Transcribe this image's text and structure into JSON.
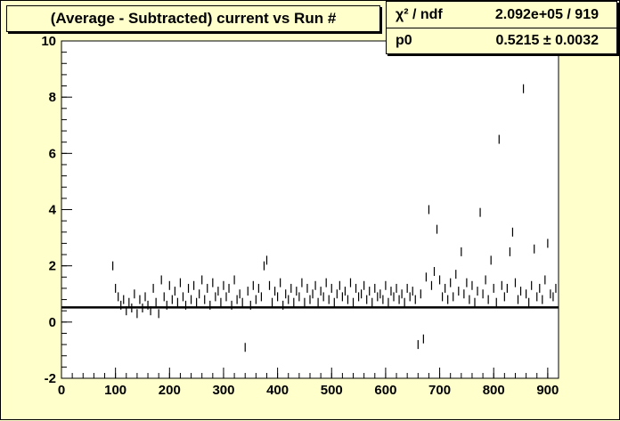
{
  "title": "(Average - Subtracted) current vs Run #",
  "stats": {
    "rows": [
      {
        "name": "χ² / ndf",
        "value": "2.092e+05 / 919"
      },
      {
        "name": "p0",
        "value": "0.5215 ± 0.0032"
      }
    ]
  },
  "chart_data": {
    "type": "scatter",
    "title": "(Average - Subtracted) current vs Run #",
    "xlabel": "",
    "ylabel": "",
    "xlim": [
      0,
      920
    ],
    "ylim": [
      -2,
      10
    ],
    "xticks": [
      0,
      100,
      200,
      300,
      400,
      500,
      600,
      700,
      800,
      900
    ],
    "yticks": [
      -2,
      0,
      2,
      4,
      6,
      8,
      10
    ],
    "grid": false,
    "fit": {
      "type": "constant",
      "p0": 0.5215,
      "p0_error": 0.0032
    },
    "colors": {
      "background": "#ffffcc",
      "frame": "#ffffff",
      "marker": "#000000"
    },
    "points": [
      [
        95,
        2.0
      ],
      [
        100,
        1.2
      ],
      [
        105,
        0.9
      ],
      [
        110,
        0.6
      ],
      [
        115,
        0.8
      ],
      [
        120,
        0.4
      ],
      [
        125,
        0.7
      ],
      [
        130,
        0.5
      ],
      [
        135,
        1.0
      ],
      [
        140,
        0.3
      ],
      [
        145,
        0.8
      ],
      [
        150,
        0.5
      ],
      [
        155,
        0.9
      ],
      [
        160,
        0.6
      ],
      [
        165,
        0.4
      ],
      [
        170,
        1.2
      ],
      [
        175,
        0.7
      ],
      [
        180,
        0.3
      ],
      [
        185,
        1.5
      ],
      [
        190,
        0.9
      ],
      [
        195,
        0.6
      ],
      [
        200,
        1.3
      ],
      [
        205,
        0.8
      ],
      [
        210,
        1.1
      ],
      [
        215,
        0.7
      ],
      [
        220,
        1.4
      ],
      [
        225,
        0.9
      ],
      [
        230,
        0.6
      ],
      [
        235,
        1.2
      ],
      [
        240,
        0.8
      ],
      [
        245,
        1.3
      ],
      [
        250,
        0.7
      ],
      [
        255,
        1.0
      ],
      [
        260,
        1.5
      ],
      [
        265,
        0.8
      ],
      [
        270,
        1.2
      ],
      [
        275,
        0.6
      ],
      [
        280,
        1.4
      ],
      [
        285,
        0.9
      ],
      [
        290,
        1.1
      ],
      [
        295,
        0.7
      ],
      [
        300,
        1.3
      ],
      [
        305,
        0.9
      ],
      [
        310,
        1.2
      ],
      [
        315,
        0.6
      ],
      [
        320,
        1.5
      ],
      [
        325,
        0.8
      ],
      [
        330,
        1.0
      ],
      [
        335,
        0.7
      ],
      [
        340,
        -0.9
      ],
      [
        345,
        1.1
      ],
      [
        350,
        0.6
      ],
      [
        355,
        1.3
      ],
      [
        360,
        0.8
      ],
      [
        365,
        1.2
      ],
      [
        370,
        0.9
      ],
      [
        375,
        2.0
      ],
      [
        380,
        2.2
      ],
      [
        385,
        1.3
      ],
      [
        390,
        0.7
      ],
      [
        395,
        1.1
      ],
      [
        400,
        0.9
      ],
      [
        405,
        1.4
      ],
      [
        410,
        0.6
      ],
      [
        415,
        1.0
      ],
      [
        420,
        0.8
      ],
      [
        425,
        1.2
      ],
      [
        430,
        0.7
      ],
      [
        435,
        1.1
      ],
      [
        440,
        0.9
      ],
      [
        445,
        1.4
      ],
      [
        450,
        0.7
      ],
      [
        455,
        1.2
      ],
      [
        460,
        0.8
      ],
      [
        465,
        1.0
      ],
      [
        470,
        1.3
      ],
      [
        475,
        0.7
      ],
      [
        480,
        1.1
      ],
      [
        485,
        0.9
      ],
      [
        490,
        1.4
      ],
      [
        495,
        0.8
      ],
      [
        500,
        1.2
      ],
      [
        505,
        0.7
      ],
      [
        510,
        1.0
      ],
      [
        515,
        1.3
      ],
      [
        520,
        0.9
      ],
      [
        525,
        1.1
      ],
      [
        530,
        0.8
      ],
      [
        535,
        1.4
      ],
      [
        540,
        0.7
      ],
      [
        545,
        1.2
      ],
      [
        550,
        0.9
      ],
      [
        555,
        1.0
      ],
      [
        560,
        1.3
      ],
      [
        565,
        0.8
      ],
      [
        570,
        1.1
      ],
      [
        575,
        0.7
      ],
      [
        580,
        1.2
      ],
      [
        585,
        0.9
      ],
      [
        590,
        1.0
      ],
      [
        595,
        0.8
      ],
      [
        600,
        1.3
      ],
      [
        605,
        0.7
      ],
      [
        610,
        1.1
      ],
      [
        615,
        0.9
      ],
      [
        620,
        1.2
      ],
      [
        625,
        0.8
      ],
      [
        630,
        1.0
      ],
      [
        635,
        0.7
      ],
      [
        640,
        1.2
      ],
      [
        645,
        0.9
      ],
      [
        650,
        1.1
      ],
      [
        655,
        0.8
      ],
      [
        660,
        -0.8
      ],
      [
        665,
        1.0
      ],
      [
        670,
        -0.6
      ],
      [
        675,
        1.6
      ],
      [
        680,
        4.0
      ],
      [
        685,
        1.3
      ],
      [
        690,
        1.8
      ],
      [
        695,
        3.3
      ],
      [
        700,
        1.5
      ],
      [
        705,
        0.9
      ],
      [
        710,
        1.2
      ],
      [
        715,
        0.8
      ],
      [
        720,
        1.4
      ],
      [
        725,
        0.9
      ],
      [
        730,
        1.7
      ],
      [
        735,
        1.1
      ],
      [
        740,
        2.5
      ],
      [
        745,
        1.0
      ],
      [
        750,
        1.4
      ],
      [
        755,
        0.8
      ],
      [
        760,
        1.3
      ],
      [
        765,
        0.7
      ],
      [
        770,
        1.1
      ],
      [
        775,
        3.9
      ],
      [
        780,
        1.0
      ],
      [
        785,
        1.5
      ],
      [
        790,
        0.8
      ],
      [
        795,
        2.2
      ],
      [
        800,
        1.2
      ],
      [
        805,
        0.7
      ],
      [
        810,
        6.5
      ],
      [
        815,
        1.3
      ],
      [
        820,
        0.9
      ],
      [
        825,
        1.2
      ],
      [
        830,
        2.5
      ],
      [
        835,
        3.2
      ],
      [
        840,
        1.4
      ],
      [
        845,
        0.8
      ],
      [
        850,
        1.1
      ],
      [
        855,
        8.3
      ],
      [
        860,
        1.0
      ],
      [
        865,
        0.7
      ],
      [
        870,
        1.3
      ],
      [
        875,
        2.6
      ],
      [
        880,
        0.9
      ],
      [
        885,
        1.2
      ],
      [
        890,
        0.8
      ],
      [
        895,
        1.5
      ],
      [
        900,
        2.8
      ],
      [
        905,
        1.0
      ],
      [
        910,
        0.9
      ],
      [
        915,
        1.2
      ]
    ]
  }
}
